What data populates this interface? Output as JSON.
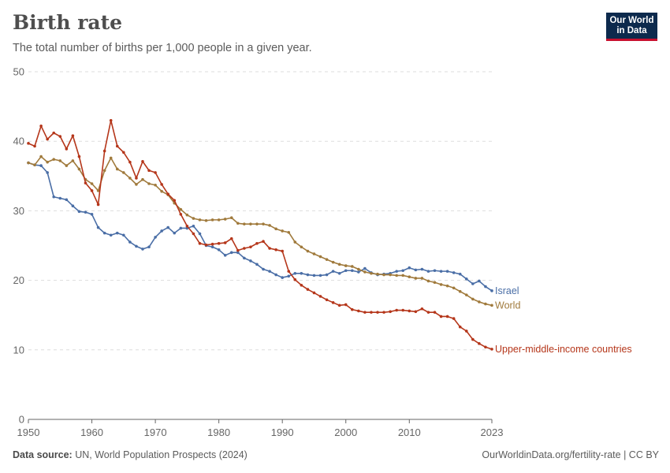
{
  "header": {
    "title": "Birth rate",
    "subtitle": "The total number of births per 1,000 people in a given year."
  },
  "logo": {
    "line1": "Our World",
    "line2": "in Data"
  },
  "footer": {
    "source_label": "Data source:",
    "source_text": "UN, World Population Prospects (2024)",
    "right_text": "OurWorldinData.org/fertility-rate | CC BY"
  },
  "colors": {
    "Israel": "#4a6ea6",
    "World": "#a07a3c",
    "Upper-middle-income countries": "#b5361a",
    "grid": "#dddddd",
    "axis": "#666666"
  },
  "chart_data": {
    "type": "line",
    "title": "Birth rate",
    "subtitle": "The total number of births per 1,000 people in a given year.",
    "xlabel": "",
    "ylabel": "",
    "xlim": [
      1950,
      2023
    ],
    "ylim": [
      0,
      50
    ],
    "x_ticks": [
      1950,
      1960,
      1970,
      1980,
      1990,
      2000,
      2010,
      2023
    ],
    "y_ticks": [
      0,
      10,
      20,
      30,
      40,
      50
    ],
    "grid": "horizontal dashed",
    "legend": "labels at line ends (right)",
    "x": [
      1950,
      1951,
      1952,
      1953,
      1954,
      1955,
      1956,
      1957,
      1958,
      1959,
      1960,
      1961,
      1962,
      1963,
      1964,
      1965,
      1966,
      1967,
      1968,
      1969,
      1970,
      1971,
      1972,
      1973,
      1974,
      1975,
      1976,
      1977,
      1978,
      1979,
      1980,
      1981,
      1982,
      1983,
      1984,
      1985,
      1986,
      1987,
      1988,
      1989,
      1990,
      1991,
      1992,
      1993,
      1994,
      1995,
      1996,
      1997,
      1998,
      1999,
      2000,
      2001,
      2002,
      2003,
      2004,
      2005,
      2006,
      2007,
      2008,
      2009,
      2010,
      2011,
      2012,
      2013,
      2014,
      2015,
      2016,
      2017,
      2018,
      2019,
      2020,
      2021,
      2022,
      2023
    ],
    "series": [
      {
        "name": "Israel",
        "values": [
          36.9,
          36.6,
          36.5,
          35.5,
          32.0,
          31.8,
          31.6,
          30.7,
          29.9,
          29.8,
          29.5,
          27.6,
          26.8,
          26.5,
          26.8,
          26.5,
          25.5,
          24.9,
          24.5,
          24.8,
          26.2,
          27.1,
          27.6,
          26.8,
          27.5,
          27.5,
          27.8,
          26.7,
          25.0,
          24.8,
          24.4,
          23.6,
          24.0,
          24.0,
          23.2,
          22.8,
          22.3,
          21.6,
          21.3,
          20.8,
          20.4,
          20.6,
          21.0,
          21.0,
          20.8,
          20.7,
          20.7,
          20.8,
          21.3,
          21.0,
          21.4,
          21.4,
          21.2,
          21.7,
          21.1,
          20.8,
          20.9,
          21.0,
          21.3,
          21.4,
          21.8,
          21.5,
          21.6,
          21.3,
          21.4,
          21.3,
          21.3,
          21.1,
          20.9,
          20.2,
          19.5,
          19.9,
          19.1,
          18.5
        ]
      },
      {
        "name": "World",
        "values": [
          36.9,
          36.6,
          37.8,
          37.0,
          37.4,
          37.2,
          36.5,
          37.2,
          36.0,
          34.5,
          33.9,
          32.9,
          35.8,
          37.6,
          36.0,
          35.5,
          34.7,
          33.8,
          34.5,
          33.9,
          33.7,
          32.8,
          32.3,
          31.1,
          30.2,
          29.4,
          28.9,
          28.7,
          28.6,
          28.7,
          28.7,
          28.8,
          29.0,
          28.2,
          28.1,
          28.1,
          28.1,
          28.1,
          27.9,
          27.4,
          27.1,
          26.9,
          25.5,
          24.8,
          24.2,
          23.8,
          23.4,
          23.0,
          22.6,
          22.3,
          22.1,
          22.0,
          21.6,
          21.2,
          21.0,
          20.9,
          20.8,
          20.8,
          20.7,
          20.7,
          20.5,
          20.3,
          20.3,
          19.9,
          19.7,
          19.4,
          19.2,
          18.9,
          18.4,
          17.9,
          17.3,
          16.9,
          16.6,
          16.4
        ]
      },
      {
        "name": "Upper-middle-income countries",
        "values": [
          39.7,
          39.3,
          42.2,
          40.3,
          41.2,
          40.7,
          38.9,
          40.8,
          37.8,
          34.0,
          32.9,
          30.9,
          38.6,
          43.0,
          39.3,
          38.4,
          37.0,
          34.7,
          37.1,
          35.8,
          35.5,
          33.8,
          32.4,
          31.5,
          29.5,
          27.8,
          26.7,
          25.3,
          25.1,
          25.2,
          25.3,
          25.4,
          26.0,
          24.3,
          24.6,
          24.8,
          25.3,
          25.6,
          24.6,
          24.4,
          24.2,
          21.3,
          20.1,
          19.3,
          18.7,
          18.2,
          17.7,
          17.2,
          16.8,
          16.4,
          16.5,
          15.8,
          15.6,
          15.4,
          15.4,
          15.4,
          15.4,
          15.5,
          15.7,
          15.7,
          15.6,
          15.5,
          15.9,
          15.4,
          15.4,
          14.8,
          14.8,
          14.5,
          13.3,
          12.7,
          11.5,
          10.9,
          10.4,
          10.1
        ]
      }
    ]
  }
}
